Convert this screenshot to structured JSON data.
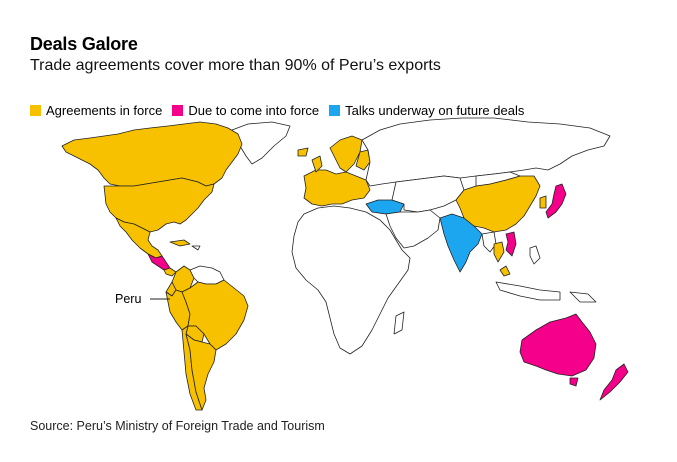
{
  "header": {
    "title": "Deals Galore",
    "subtitle": "Trade agreements cover more than 90% of Peru’s exports"
  },
  "legend": {
    "items": [
      {
        "label": "Agreements in force",
        "color": "#F7C100"
      },
      {
        "label": "Due to come into force",
        "color": "#F5008A"
      },
      {
        "label": "Talks underway on future deals",
        "color": "#1DA6F0"
      }
    ]
  },
  "map": {
    "callout_label": "Peru",
    "colors": {
      "in_force": "#F7C100",
      "due": "#F5008A",
      "talks": "#1DA6F0",
      "none": "#FFFFFF",
      "border": "#222222"
    }
  },
  "footer": {
    "source": "Source: Peru’s Ministry of Foreign Trade and Tourism"
  }
}
